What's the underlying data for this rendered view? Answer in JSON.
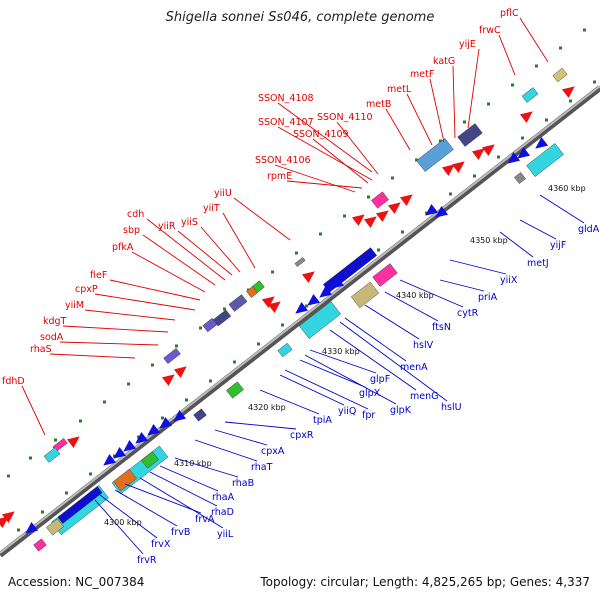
{
  "title": "Shigella sonnei Ss046, complete genome",
  "accession": "Accession: NC_007384",
  "summary": "Topology: circular; Length: 4,825,265 bp; Genes: 4,337",
  "colors": {
    "backbone": "#8c8c8c",
    "forward_label": "#e00000",
    "reverse_label": "#0000cc",
    "tick": "#1a8a1a"
  },
  "scale_labels": [
    "4300 kbp",
    "4310 kbp",
    "4320 kbp",
    "4330 kbp",
    "4340 kbp",
    "4350 kbp",
    "4360 kbp"
  ],
  "forward_genes": [
    "fdhD",
    "rhaS",
    "sodA",
    "kdgT",
    "yiiM",
    "cpxP",
    "fieF",
    "pfkA",
    "sbp",
    "cdh",
    "yiiR",
    "yiiS",
    "yiiT",
    "yiiU",
    "SSON_4106",
    "rpmE",
    "SSON_4109",
    "SSON_4107",
    "SSON_4110",
    "SSON_4108",
    "metB",
    "metL",
    "metF",
    "katG",
    "yijE",
    "frwC",
    "pflC"
  ],
  "reverse_genes": [
    "frvR",
    "frvX",
    "frvB",
    "frvA",
    "yiiL",
    "rhaD",
    "rhaA",
    "rhaB",
    "rhaT",
    "cpxA",
    "cpxR",
    "tpiA",
    "yiiQ",
    "fpr",
    "glpX",
    "glpK",
    "glpF",
    "menG",
    "hslU",
    "menA",
    "hslV",
    "ftsN",
    "cytR",
    "priA",
    "yiiX",
    "metJ",
    "yijF",
    "gldA"
  ]
}
